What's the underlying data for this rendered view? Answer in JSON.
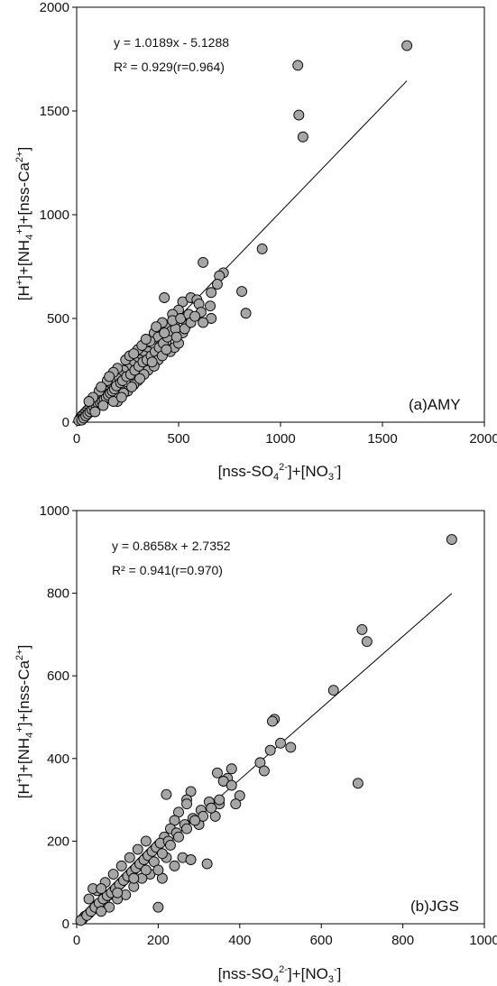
{
  "chart_data": [
    {
      "type": "scatter",
      "panel_label": "(a)AMY",
      "xlabel": {
        "main": "[nss-SO",
        "sub": "4",
        "sup": "2-",
        "tail": "]+[NO",
        "sub2": "3",
        "sup2": "-",
        "end": "]"
      },
      "ylabel": {
        "p1": "[H",
        "sup1": "+",
        "p2": "]+[NH",
        "sub2": "4",
        "sup2": "+",
        "p3": "]+[nss-Ca",
        "sup3": "2+",
        "p4": "]"
      },
      "xlim": [
        0,
        2000
      ],
      "ylim": [
        0,
        2000
      ],
      "xticks": [
        "0",
        "500",
        "1000",
        "1500",
        "2000"
      ],
      "yticks": [
        "0",
        "500",
        "1000",
        "1500",
        "2000"
      ],
      "equation": "y = 1.0189x - 5.1288",
      "r_squared": "R² = 0.929(r=0.964)",
      "fit": {
        "slope": 1.0189,
        "intercept": -5.1288,
        "x_range": [
          10,
          1620
        ]
      },
      "marker_color": "#a6a6a6",
      "points": [
        [
          1620,
          1815
        ],
        [
          1085,
          1720
        ],
        [
          1090,
          1480
        ],
        [
          1110,
          1375
        ],
        [
          910,
          835
        ],
        [
          810,
          630
        ],
        [
          830,
          525
        ],
        [
          720,
          720
        ],
        [
          700,
          705
        ],
        [
          690,
          665
        ],
        [
          620,
          770
        ],
        [
          660,
          625
        ],
        [
          655,
          560
        ],
        [
          660,
          500
        ],
        [
          520,
          580
        ],
        [
          560,
          600
        ],
        [
          590,
          590
        ],
        [
          600,
          570
        ],
        [
          430,
          600
        ],
        [
          500,
          540
        ],
        [
          470,
          520
        ],
        [
          480,
          470
        ],
        [
          450,
          460
        ],
        [
          420,
          480
        ],
        [
          520,
          430
        ],
        [
          540,
          470
        ],
        [
          560,
          500
        ],
        [
          610,
          530
        ],
        [
          620,
          480
        ],
        [
          380,
          430
        ],
        [
          400,
          410
        ],
        [
          360,
          390
        ],
        [
          410,
          370
        ],
        [
          440,
          390
        ],
        [
          460,
          420
        ],
        [
          350,
          340
        ],
        [
          330,
          320
        ],
        [
          310,
          300
        ],
        [
          290,
          290
        ],
        [
          300,
          350
        ],
        [
          270,
          280
        ],
        [
          250,
          260
        ],
        [
          230,
          250
        ],
        [
          210,
          230
        ],
        [
          200,
          210
        ],
        [
          190,
          170
        ],
        [
          170,
          190
        ],
        [
          160,
          160
        ],
        [
          150,
          170
        ],
        [
          140,
          150
        ],
        [
          130,
          140
        ],
        [
          120,
          130
        ],
        [
          110,
          120
        ],
        [
          100,
          110
        ],
        [
          90,
          95
        ],
        [
          80,
          90
        ],
        [
          70,
          75
        ],
        [
          60,
          65
        ],
        [
          50,
          55
        ],
        [
          40,
          45
        ],
        [
          30,
          35
        ],
        [
          20,
          25
        ],
        [
          15,
          15
        ],
        [
          10,
          8
        ],
        [
          25,
          10
        ],
        [
          35,
          20
        ],
        [
          45,
          30
        ],
        [
          55,
          40
        ],
        [
          65,
          50
        ],
        [
          75,
          60
        ],
        [
          85,
          70
        ],
        [
          95,
          80
        ],
        [
          105,
          90
        ],
        [
          115,
          95
        ],
        [
          125,
          100
        ],
        [
          135,
          110
        ],
        [
          145,
          120
        ],
        [
          155,
          130
        ],
        [
          165,
          140
        ],
        [
          175,
          150
        ],
        [
          185,
          160
        ],
        [
          195,
          175
        ],
        [
          215,
          190
        ],
        [
          225,
          200
        ],
        [
          245,
          220
        ],
        [
          265,
          230
        ],
        [
          285,
          250
        ],
        [
          305,
          270
        ],
        [
          325,
          290
        ],
        [
          345,
          300
        ],
        [
          365,
          320
        ],
        [
          385,
          340
        ],
        [
          405,
          360
        ],
        [
          425,
          380
        ],
        [
          445,
          410
        ],
        [
          465,
          440
        ],
        [
          485,
          450
        ],
        [
          200,
          100
        ],
        [
          250,
          150
        ],
        [
          300,
          200
        ],
        [
          350,
          250
        ],
        [
          400,
          300
        ],
        [
          420,
          320
        ],
        [
          460,
          340
        ],
        [
          480,
          360
        ],
        [
          500,
          380
        ],
        [
          380,
          270
        ],
        [
          330,
          230
        ],
        [
          280,
          180
        ],
        [
          230,
          140
        ],
        [
          180,
          100
        ],
        [
          130,
          80
        ],
        [
          90,
          50
        ],
        [
          110,
          150
        ],
        [
          150,
          200
        ],
        [
          200,
          260
        ],
        [
          240,
          300
        ],
        [
          260,
          320
        ],
        [
          280,
          330
        ],
        [
          180,
          240
        ],
        [
          160,
          220
        ],
        [
          120,
          170
        ],
        [
          80,
          120
        ],
        [
          60,
          100
        ],
        [
          430,
          430
        ],
        [
          470,
          490
        ],
        [
          510,
          500
        ],
        [
          550,
          520
        ],
        [
          490,
          410
        ],
        [
          530,
          450
        ],
        [
          440,
          350
        ],
        [
          370,
          290
        ],
        [
          560,
          480
        ],
        [
          580,
          510
        ],
        [
          320,
          370
        ],
        [
          340,
          400
        ],
        [
          390,
          460
        ],
        [
          220,
          120
        ],
        [
          270,
          170
        ],
        [
          310,
          210
        ]
      ]
    },
    {
      "type": "scatter",
      "panel_label": "(b)JGS",
      "xlabel": {
        "main": "[nss-SO",
        "sub": "4",
        "sup": "2-",
        "tail": "]+[NO",
        "sub2": "3",
        "sup2": "-",
        "end": "]"
      },
      "ylabel": {
        "p1": "[H",
        "sup1": "+",
        "p2": "]+[NH",
        "sub2": "4",
        "sup2": "+",
        "p3": "]+[nss-Ca",
        "sup3": "2+",
        "p4": "]"
      },
      "xlim": [
        0,
        1000
      ],
      "ylim": [
        0,
        1000
      ],
      "xticks": [
        "0",
        "200",
        "400",
        "600",
        "800",
        "1000"
      ],
      "yticks": [
        "0",
        "200",
        "400",
        "600",
        "800",
        "1000"
      ],
      "equation": "y = 0.8658x + 2.7352",
      "r_squared": "R² = 0.941(r=0.970)",
      "fit": {
        "slope": 0.8658,
        "intercept": 2.7352,
        "x_range": [
          5,
          920
        ]
      },
      "marker_color": "#a6a6a6",
      "points": [
        [
          920,
          930
        ],
        [
          700,
          712
        ],
        [
          712,
          683
        ],
        [
          630,
          565
        ],
        [
          690,
          340
        ],
        [
          485,
          495
        ],
        [
          480,
          490
        ],
        [
          500,
          437
        ],
        [
          525,
          427
        ],
        [
          475,
          420
        ],
        [
          450,
          390
        ],
        [
          460,
          370
        ],
        [
          400,
          310
        ],
        [
          380,
          375
        ],
        [
          370,
          352
        ],
        [
          360,
          345
        ],
        [
          345,
          365
        ],
        [
          380,
          335
        ],
        [
          390,
          290
        ],
        [
          350,
          290
        ],
        [
          340,
          260
        ],
        [
          320,
          145
        ],
        [
          280,
          320
        ],
        [
          270,
          300
        ],
        [
          270,
          290
        ],
        [
          220,
          313
        ],
        [
          250,
          270
        ],
        [
          240,
          250
        ],
        [
          230,
          230
        ],
        [
          215,
          210
        ],
        [
          200,
          190
        ],
        [
          190,
          180
        ],
        [
          180,
          170
        ],
        [
          170,
          160
        ],
        [
          160,
          150
        ],
        [
          150,
          140
        ],
        [
          140,
          130
        ],
        [
          130,
          120
        ],
        [
          120,
          110
        ],
        [
          110,
          100
        ],
        [
          100,
          90
        ],
        [
          90,
          80
        ],
        [
          80,
          70
        ],
        [
          70,
          60
        ],
        [
          60,
          50
        ],
        [
          50,
          45
        ],
        [
          40,
          35
        ],
        [
          30,
          25
        ],
        [
          20,
          18
        ],
        [
          15,
          12
        ],
        [
          10,
          8
        ],
        [
          25,
          20
        ],
        [
          35,
          30
        ],
        [
          45,
          40
        ],
        [
          55,
          50
        ],
        [
          65,
          60
        ],
        [
          75,
          68
        ],
        [
          85,
          75
        ],
        [
          95,
          85
        ],
        [
          105,
          95
        ],
        [
          115,
          105
        ],
        [
          125,
          115
        ],
        [
          135,
          125
        ],
        [
          145,
          135
        ],
        [
          155,
          145
        ],
        [
          165,
          155
        ],
        [
          175,
          165
        ],
        [
          185,
          175
        ],
        [
          195,
          185
        ],
        [
          205,
          195
        ],
        [
          225,
          200
        ],
        [
          245,
          220
        ],
        [
          265,
          240
        ],
        [
          285,
          255
        ],
        [
          305,
          275
        ],
        [
          325,
          295
        ],
        [
          200,
          40
        ],
        [
          210,
          110
        ],
        [
          260,
          160
        ],
        [
          280,
          155
        ],
        [
          300,
          240
        ],
        [
          310,
          260
        ],
        [
          180,
          120
        ],
        [
          160,
          110
        ],
        [
          140,
          90
        ],
        [
          120,
          70
        ],
        [
          100,
          60
        ],
        [
          80,
          40
        ],
        [
          60,
          30
        ],
        [
          150,
          180
        ],
        [
          170,
          200
        ],
        [
          130,
          160
        ],
        [
          110,
          140
        ],
        [
          90,
          120
        ],
        [
          70,
          100
        ],
        [
          50,
          80
        ],
        [
          40,
          85
        ],
        [
          30,
          60
        ],
        [
          190,
          150
        ],
        [
          230,
          190
        ],
        [
          250,
          210
        ],
        [
          270,
          230
        ],
        [
          290,
          250
        ],
        [
          330,
          280
        ],
        [
          350,
          300
        ],
        [
          240,
          140
        ],
        [
          220,
          160
        ],
        [
          200,
          130
        ],
        [
          60,
          85
        ],
        [
          100,
          75
        ],
        [
          140,
          110
        ],
        [
          170,
          130
        ],
        [
          210,
          170
        ]
      ]
    }
  ]
}
